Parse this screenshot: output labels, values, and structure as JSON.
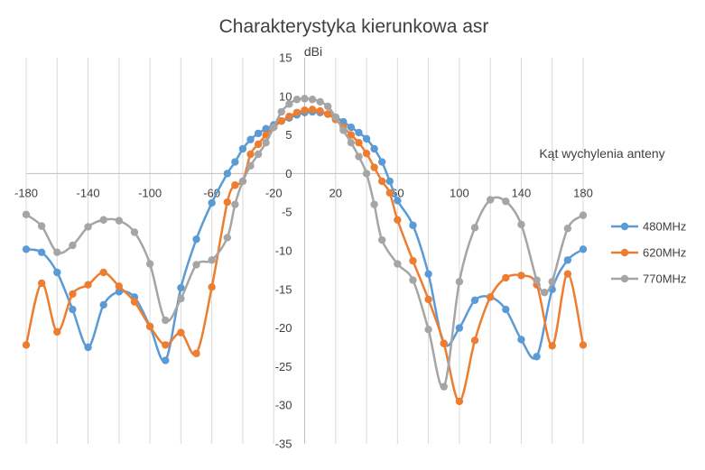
{
  "chart_data": {
    "type": "line",
    "title": "Charakterystyka kierunkowa asr",
    "xlabel": "Kąt  wychylenia anteny",
    "ylabel": "dBi",
    "xlim": [
      -180,
      180
    ],
    "ylim": [
      -35,
      15
    ],
    "x_ticks": [
      -180,
      -140,
      -100,
      -60,
      -20,
      20,
      60,
      100,
      140,
      180
    ],
    "y_ticks": [
      15,
      10,
      5,
      0,
      -5,
      -10,
      -15,
      -20,
      -25,
      -30,
      -35
    ],
    "grid": "vertical",
    "legend_position": "right",
    "series": [
      {
        "name": "480MHz",
        "color": "#5b9bd5",
        "points": [
          [
            -180,
            -9.8
          ],
          [
            -170,
            -10.2
          ],
          [
            -160,
            -12.8
          ],
          [
            -150,
            -17.6
          ],
          [
            -140,
            -22.5
          ],
          [
            -130,
            -17.0
          ],
          [
            -120,
            -15.3
          ],
          [
            -110,
            -16.0
          ],
          [
            -100,
            -19.8
          ],
          [
            -90,
            -24.2
          ],
          [
            -80,
            -14.8
          ],
          [
            -70,
            -8.5
          ],
          [
            -60,
            -3.8
          ],
          [
            -50,
            0.0
          ],
          [
            -45,
            1.5
          ],
          [
            -40,
            3.2
          ],
          [
            -35,
            4.4
          ],
          [
            -30,
            5.2
          ],
          [
            -25,
            5.8
          ],
          [
            -20,
            6.3
          ],
          [
            -15,
            6.8
          ],
          [
            -10,
            7.2
          ],
          [
            -5,
            7.6
          ],
          [
            0,
            7.9
          ],
          [
            5,
            8.0
          ],
          [
            10,
            7.9
          ],
          [
            15,
            7.7
          ],
          [
            20,
            7.3
          ],
          [
            25,
            6.7
          ],
          [
            30,
            6.0
          ],
          [
            35,
            5.3
          ],
          [
            40,
            4.5
          ],
          [
            45,
            3.2
          ],
          [
            50,
            1.5
          ],
          [
            55,
            -1.0
          ],
          [
            60,
            -3.5
          ],
          [
            70,
            -6.7
          ],
          [
            80,
            -13.0
          ],
          [
            90,
            -22.0
          ],
          [
            100,
            -20.0
          ],
          [
            110,
            -16.4
          ],
          [
            120,
            -16.0
          ],
          [
            130,
            -17.6
          ],
          [
            140,
            -21.5
          ],
          [
            150,
            -23.7
          ],
          [
            160,
            -15.0
          ],
          [
            170,
            -11.2
          ],
          [
            180,
            -9.8
          ]
        ]
      },
      {
        "name": "620MHz",
        "color": "#ed7d31",
        "points": [
          [
            -180,
            -22.2
          ],
          [
            -170,
            -14.2
          ],
          [
            -160,
            -20.5
          ],
          [
            -150,
            -15.6
          ],
          [
            -140,
            -14.4
          ],
          [
            -130,
            -12.8
          ],
          [
            -120,
            -14.6
          ],
          [
            -110,
            -16.6
          ],
          [
            -100,
            -19.8
          ],
          [
            -90,
            -22.2
          ],
          [
            -80,
            -20.6
          ],
          [
            -70,
            -23.3
          ],
          [
            -60,
            -14.7
          ],
          [
            -50,
            -3.7
          ],
          [
            -45,
            -1.5
          ],
          [
            -40,
            -1.0
          ],
          [
            -35,
            2.5
          ],
          [
            -30,
            3.8
          ],
          [
            -25,
            5.0
          ],
          [
            -20,
            6.0
          ],
          [
            -15,
            6.8
          ],
          [
            -10,
            7.4
          ],
          [
            -5,
            7.9
          ],
          [
            0,
            8.2
          ],
          [
            5,
            8.3
          ],
          [
            10,
            8.1
          ],
          [
            15,
            7.7
          ],
          [
            20,
            7.0
          ],
          [
            25,
            6.0
          ],
          [
            30,
            5.0
          ],
          [
            35,
            4.0
          ],
          [
            40,
            2.6
          ],
          [
            45,
            0.8
          ],
          [
            50,
            -1.0
          ],
          [
            55,
            -2.5
          ],
          [
            60,
            -6.0
          ],
          [
            70,
            -11.3
          ],
          [
            80,
            -16.3
          ],
          [
            90,
            -22.0
          ],
          [
            100,
            -29.5
          ],
          [
            110,
            -21.6
          ],
          [
            120,
            -16.0
          ],
          [
            130,
            -13.5
          ],
          [
            140,
            -13.2
          ],
          [
            150,
            -14.4
          ],
          [
            160,
            -22.3
          ],
          [
            170,
            -13.0
          ],
          [
            180,
            -22.2
          ]
        ]
      },
      {
        "name": "770MHz",
        "color": "#a5a5a5",
        "points": [
          [
            -180,
            -5.3
          ],
          [
            -170,
            -6.8
          ],
          [
            -160,
            -10.2
          ],
          [
            -150,
            -9.3
          ],
          [
            -140,
            -6.9
          ],
          [
            -130,
            -6.0
          ],
          [
            -120,
            -6.1
          ],
          [
            -110,
            -7.6
          ],
          [
            -100,
            -11.7
          ],
          [
            -90,
            -19.0
          ],
          [
            -80,
            -16.2
          ],
          [
            -70,
            -11.8
          ],
          [
            -60,
            -11.2
          ],
          [
            -50,
            -8.3
          ],
          [
            -45,
            -4.0
          ],
          [
            -40,
            -1.0
          ],
          [
            -35,
            1.0
          ],
          [
            -30,
            2.5
          ],
          [
            -25,
            4.0
          ],
          [
            -20,
            6.0
          ],
          [
            -15,
            8.0
          ],
          [
            -10,
            9.0
          ],
          [
            -5,
            9.6
          ],
          [
            0,
            9.7
          ],
          [
            5,
            9.6
          ],
          [
            10,
            9.3
          ],
          [
            15,
            8.7
          ],
          [
            20,
            7.3
          ],
          [
            25,
            5.6
          ],
          [
            30,
            4.0
          ],
          [
            35,
            2.2
          ],
          [
            40,
            0.0
          ],
          [
            45,
            -4.0
          ],
          [
            50,
            -8.6
          ],
          [
            60,
            -11.7
          ],
          [
            70,
            -13.8
          ],
          [
            80,
            -20.2
          ],
          [
            90,
            -27.6
          ],
          [
            100,
            -14.0
          ],
          [
            110,
            -7.0
          ],
          [
            120,
            -3.4
          ],
          [
            130,
            -3.6
          ],
          [
            140,
            -6.6
          ],
          [
            150,
            -13.8
          ],
          [
            155,
            -15.4
          ],
          [
            160,
            -14.0
          ],
          [
            170,
            -7.1
          ],
          [
            180,
            -5.4
          ]
        ]
      }
    ]
  }
}
